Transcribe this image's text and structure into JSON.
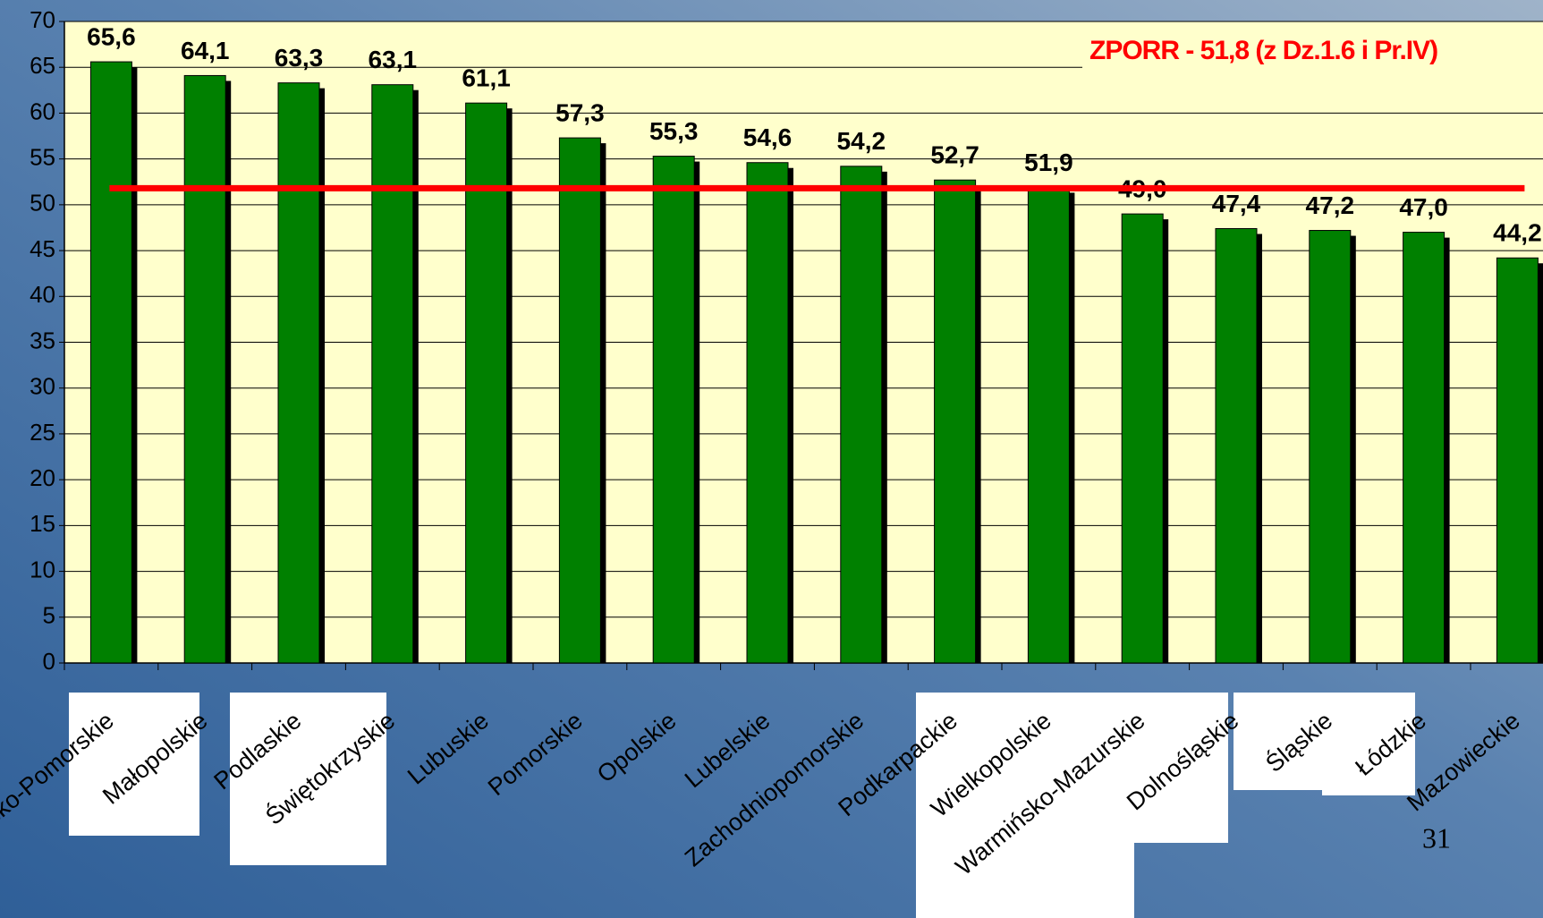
{
  "chart_data": {
    "type": "bar",
    "categories": [
      "Kujawsko-Pomorskie",
      "Małopolskie",
      "Podlaskie",
      "Świętokrzyskie",
      "Lubuskie",
      "Pomorskie",
      "Opolskie",
      "Lubelskie",
      "Zachodniopomorskie",
      "Podkarpackie",
      "Wielkopolskie",
      "Warmińsko-Mazurskie",
      "Dolnośląskie",
      "Śląskie",
      "Łódzkie",
      "Mazowieckie"
    ],
    "values": [
      65.6,
      64.1,
      63.3,
      63.1,
      61.1,
      57.3,
      55.3,
      54.6,
      54.2,
      52.7,
      51.9,
      49.0,
      47.4,
      47.2,
      47.0,
      44.2
    ],
    "value_labels": [
      "65,6",
      "64,1",
      "63,3",
      "63,1",
      "61,1",
      "57,3",
      "55,3",
      "54,6",
      "54,2",
      "52,7",
      "51,9",
      "49,0",
      "47,4",
      "47,2",
      "47,0",
      "44,2"
    ],
    "color": "#008000",
    "ylim": [
      0,
      70
    ],
    "yticks": [
      0,
      5,
      10,
      15,
      20,
      25,
      30,
      35,
      40,
      45,
      50,
      55,
      60,
      65,
      70
    ],
    "grid": true,
    "reference_line": {
      "value": 51.8,
      "color": "#ff0000",
      "label": "ZPORR - 51,8 (z Dz.1.6 i Pr.IV)"
    },
    "page_number": "31"
  }
}
